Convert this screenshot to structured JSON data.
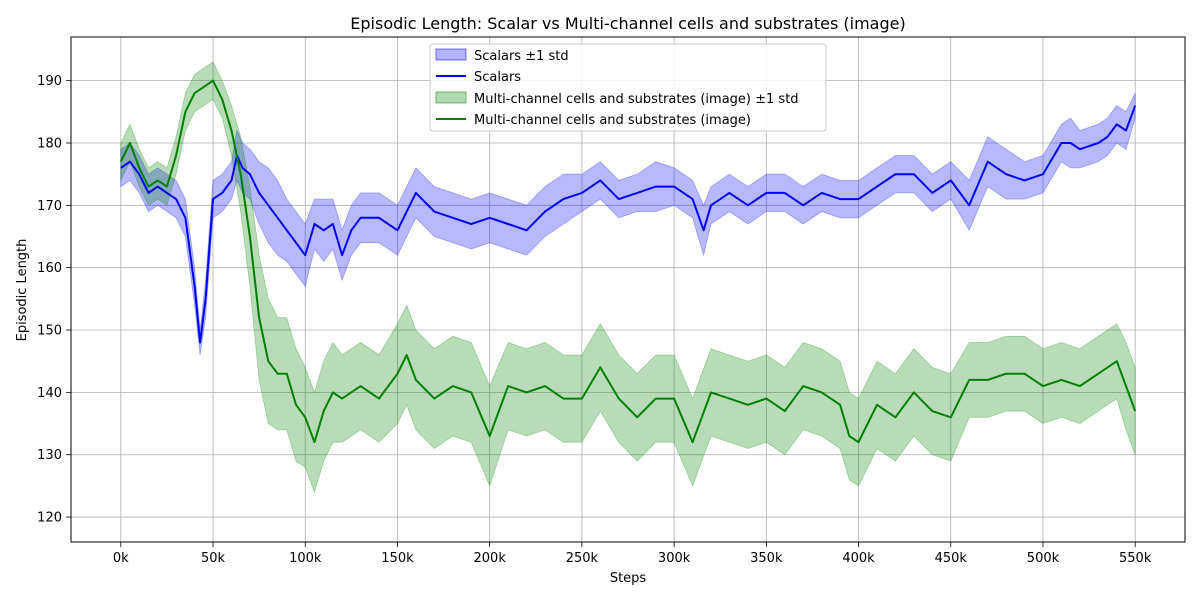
{
  "chart_data": {
    "type": "line",
    "title": "Episodic Length: Scalar vs Multi-channel cells and substrates (image)",
    "xlabel": "Steps",
    "ylabel": "Episodic Length",
    "xlim": [
      -27000,
      577000
    ],
    "ylim": [
      116,
      197
    ],
    "x_ticks": [
      0,
      50000,
      100000,
      150000,
      200000,
      250000,
      300000,
      350000,
      400000,
      450000,
      500000,
      550000
    ],
    "x_tick_labels": [
      "0k",
      "50k",
      "100k",
      "150k",
      "200k",
      "250k",
      "300k",
      "350k",
      "400k",
      "450k",
      "500k",
      "550k"
    ],
    "y_ticks": [
      120,
      130,
      140,
      150,
      160,
      170,
      180,
      190
    ],
    "y_tick_labels": [
      "120",
      "130",
      "140",
      "150",
      "160",
      "170",
      "180",
      "190"
    ],
    "grid": true,
    "legend_position": "top-center",
    "legend": [
      {
        "label": "Scalars ±1 std",
        "kind": "band",
        "color": "#0000ff"
      },
      {
        "label": "Scalars",
        "kind": "line",
        "color": "#0000ff"
      },
      {
        "label": "Multi-channel cells and substrates (image) ±1 std",
        "kind": "band",
        "color": "#008000"
      },
      {
        "label": "Multi-channel cells and substrates (image)",
        "kind": "line",
        "color": "#008000"
      }
    ],
    "series": [
      {
        "name": "Scalars",
        "color": "#0000ff",
        "x": [
          0,
          5000,
          10000,
          15000,
          20000,
          25000,
          30000,
          35000,
          40000,
          43000,
          46000,
          50000,
          55000,
          60000,
          63000,
          66000,
          70000,
          75000,
          80000,
          85000,
          90000,
          95000,
          100000,
          105000,
          110000,
          115000,
          120000,
          125000,
          130000,
          140000,
          150000,
          160000,
          170000,
          180000,
          190000,
          200000,
          210000,
          220000,
          230000,
          240000,
          250000,
          260000,
          270000,
          280000,
          290000,
          300000,
          310000,
          316000,
          320000,
          330000,
          340000,
          350000,
          360000,
          370000,
          380000,
          390000,
          400000,
          410000,
          420000,
          430000,
          440000,
          450000,
          460000,
          470000,
          480000,
          490000,
          500000,
          510000,
          515000,
          520000,
          530000,
          535000,
          540000,
          545000,
          550000
        ],
        "y": [
          176,
          177,
          175,
          172,
          173,
          172,
          171,
          168,
          157,
          148,
          155,
          171,
          172,
          174,
          178,
          176,
          175,
          172,
          170,
          168,
          166,
          164,
          162,
          167,
          166,
          167,
          162,
          166,
          168,
          168,
          166,
          172,
          169,
          168,
          167,
          168,
          167,
          166,
          169,
          171,
          172,
          174,
          171,
          172,
          173,
          173,
          171,
          166,
          170,
          172,
          170,
          172,
          172,
          170,
          172,
          171,
          171,
          173,
          175,
          175,
          172,
          174,
          170,
          177,
          175,
          174,
          175,
          180,
          180,
          179,
          180,
          181,
          183,
          182,
          186
        ],
        "std": [
          3,
          3,
          3,
          3,
          3,
          3,
          3,
          3,
          3,
          2,
          3,
          3,
          3,
          3,
          4,
          4,
          4,
          5,
          6,
          6,
          5,
          5,
          5,
          4,
          5,
          4,
          4,
          4,
          4,
          4,
          4,
          4,
          4,
          4,
          4,
          4,
          4,
          4,
          4,
          4,
          3,
          3,
          3,
          3,
          4,
          3,
          3,
          4,
          3,
          3,
          3,
          3,
          3,
          3,
          3,
          3,
          3,
          3,
          3,
          3,
          3,
          3,
          4,
          4,
          4,
          3,
          3,
          3,
          4,
          3,
          3,
          3,
          3,
          3,
          2
        ]
      },
      {
        "name": "Multi-channel cells and substrates (image)",
        "color": "#008000",
        "x": [
          0,
          5000,
          10000,
          15000,
          20000,
          25000,
          30000,
          35000,
          40000,
          45000,
          50000,
          55000,
          60000,
          65000,
          70000,
          75000,
          80000,
          85000,
          90000,
          95000,
          100000,
          105000,
          110000,
          115000,
          120000,
          130000,
          140000,
          150000,
          155000,
          160000,
          170000,
          180000,
          190000,
          200000,
          210000,
          220000,
          230000,
          240000,
          250000,
          260000,
          270000,
          280000,
          290000,
          300000,
          310000,
          320000,
          330000,
          340000,
          350000,
          360000,
          370000,
          380000,
          390000,
          395000,
          400000,
          410000,
          420000,
          430000,
          440000,
          450000,
          460000,
          470000,
          480000,
          490000,
          500000,
          510000,
          520000,
          530000,
          540000,
          545000,
          550000
        ],
        "y": [
          177,
          180,
          176,
          173,
          174,
          173,
          178,
          185,
          188,
          189,
          190,
          187,
          182,
          175,
          165,
          152,
          145,
          143,
          143,
          138,
          136,
          132,
          137,
          140,
          139,
          141,
          139,
          143,
          146,
          142,
          139,
          141,
          140,
          133,
          141,
          140,
          141,
          139,
          139,
          144,
          139,
          136,
          139,
          139,
          132,
          140,
          139,
          138,
          139,
          137,
          141,
          140,
          138,
          133,
          132,
          138,
          136,
          140,
          137,
          136,
          142,
          142,
          143,
          143,
          141,
          142,
          141,
          143,
          145,
          141,
          137
        ],
        "std": [
          3,
          3,
          3,
          3,
          3,
          3,
          3,
          3,
          3,
          3,
          3,
          3,
          4,
          6,
          8,
          10,
          10,
          9,
          9,
          9,
          8,
          8,
          8,
          8,
          7,
          7,
          7,
          8,
          8,
          8,
          8,
          8,
          8,
          8,
          7,
          7,
          7,
          7,
          7,
          7,
          7,
          7,
          7,
          7,
          7,
          7,
          7,
          7,
          7,
          7,
          7,
          7,
          7,
          7,
          7,
          7,
          7,
          7,
          7,
          7,
          6,
          6,
          6,
          6,
          6,
          6,
          6,
          6,
          6,
          7,
          7
        ]
      }
    ]
  }
}
